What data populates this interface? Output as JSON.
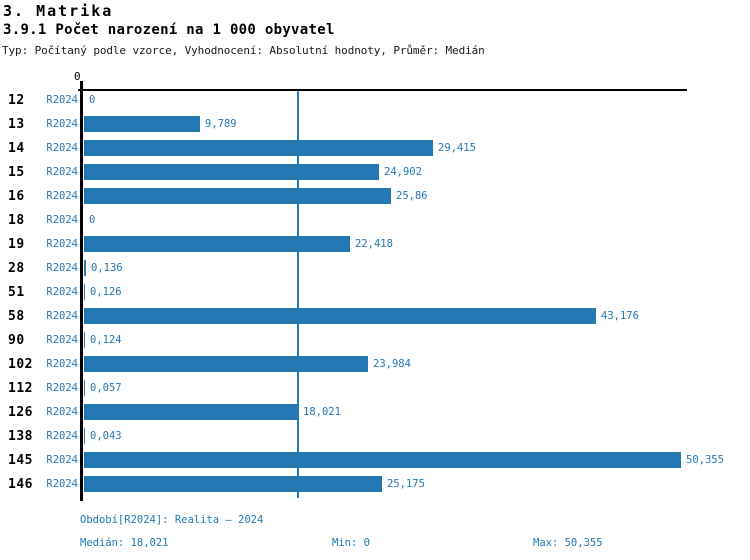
{
  "header": {
    "title": "3. Matrika",
    "subtitle": "3.9.1 Počet narození na 1 000 obyvatel",
    "meta": "Typ: Počítaný podle vzorce, Vyhodnocení: Absolutní hodnoty, Průměr: Medián"
  },
  "chart_data": {
    "type": "bar",
    "orientation": "horizontal",
    "title": "3.9.1 Počet narození na 1 000 obyvatel",
    "categories": [
      "12",
      "13",
      "14",
      "15",
      "16",
      "18",
      "19",
      "28",
      "51",
      "58",
      "90",
      "102",
      "112",
      "126",
      "138",
      "145",
      "146"
    ],
    "series": [
      {
        "name": "R2024",
        "values": [
          0,
          9.789,
          29.415,
          24.902,
          25.86,
          0,
          22.418,
          0.136,
          0.126,
          43.176,
          0.124,
          23.984,
          0.057,
          18.021,
          0.043,
          50.355,
          25.175
        ],
        "value_labels": [
          "0",
          "9,789",
          "29,415",
          "24,902",
          "25,86",
          "0",
          "22,418",
          "0,136",
          "0,126",
          "43,176",
          "0,124",
          "23,984",
          "0,057",
          "18,021",
          "0,043",
          "50,355",
          "25,175"
        ]
      }
    ],
    "value_axis": {
      "min": 0,
      "max": 50.355,
      "tick_labels": [
        "0"
      ]
    },
    "median_line": {
      "value": 18.021
    },
    "grid": false,
    "legend": false,
    "colors": {
      "bar": "#2478b4",
      "accent_text": "#2478b4",
      "axis": "#000000"
    }
  },
  "footer": {
    "period": "Období[R2024]: Realita – 2024",
    "median": "Medián: 18,021",
    "min": "Min: 0",
    "max": "Max: 50,355"
  }
}
